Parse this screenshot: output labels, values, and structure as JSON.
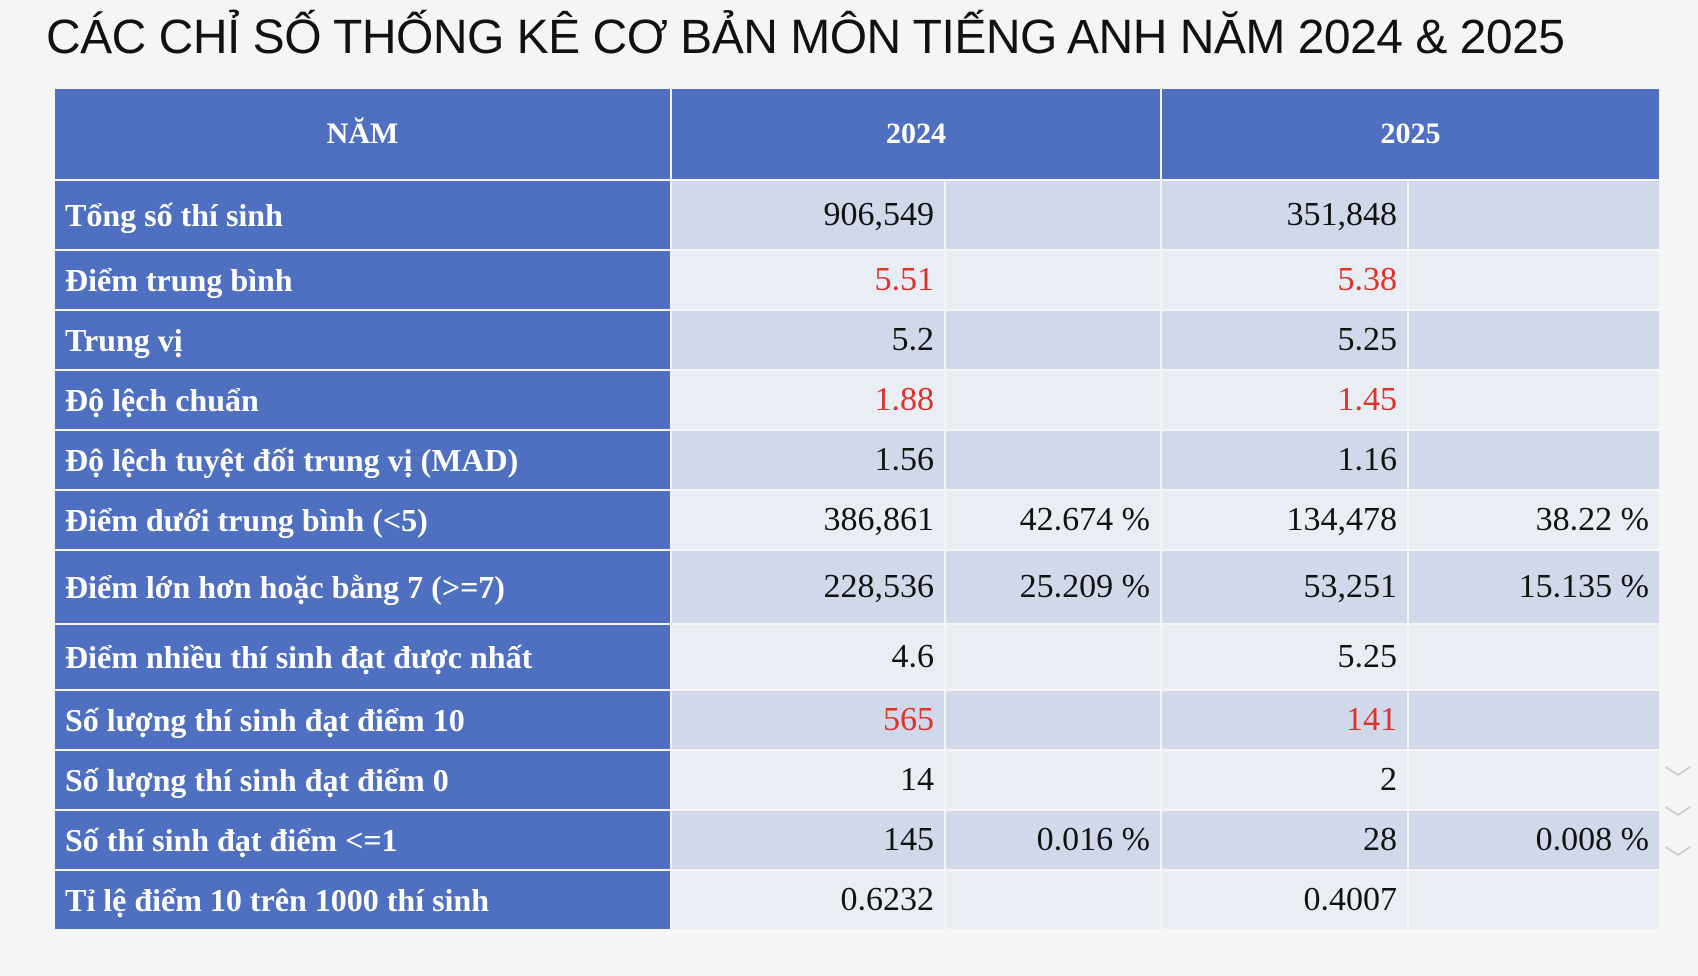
{
  "title": "CÁC CHỈ SỐ THỐNG KÊ CƠ BẢN MÔN TIẾNG ANH NĂM 2024 & 2025",
  "headers": {
    "metric": "NĂM",
    "year_a": "2024",
    "year_b": "2025"
  },
  "rows": [
    {
      "label": "Tổng số thí sinh",
      "v2024": "906,549",
      "p2024": "",
      "v2025": "351,848",
      "p2025": "",
      "red": false
    },
    {
      "label": "Điểm trung bình",
      "v2024": "5.51",
      "p2024": "",
      "v2025": "5.38",
      "p2025": "",
      "red": true
    },
    {
      "label": "Trung vị",
      "v2024": "5.2",
      "p2024": "",
      "v2025": "5.25",
      "p2025": "",
      "red": false
    },
    {
      "label": "Độ lệch chuẩn",
      "v2024": "1.88",
      "p2024": "",
      "v2025": "1.45",
      "p2025": "",
      "red": true
    },
    {
      "label": "Độ lệch tuyệt đối trung vị (MAD)",
      "v2024": "1.56",
      "p2024": "",
      "v2025": "1.16",
      "p2025": "",
      "red": false
    },
    {
      "label": "Điểm dưới trung bình (<5)",
      "v2024": "386,861",
      "p2024": "42.674 %",
      "v2025": "134,478",
      "p2025": "38.22 %",
      "red": false
    },
    {
      "label": "Điểm lớn hơn hoặc bằng 7 (>=7)",
      "v2024": "228,536",
      "p2024": "25.209 %",
      "v2025": "53,251",
      "p2025": "15.135 %",
      "red": false
    },
    {
      "label": "Điểm nhiều thí sinh đạt được nhất",
      "v2024": "4.6",
      "p2024": "",
      "v2025": "5.25",
      "p2025": "",
      "red": false
    },
    {
      "label": "Số lượng thí sinh đạt điểm 10",
      "v2024": "565",
      "p2024": "",
      "v2025": "141",
      "p2025": "",
      "red": true
    },
    {
      "label": "Số lượng thí sinh đạt điểm 0",
      "v2024": "14",
      "p2024": "",
      "v2025": "2",
      "p2025": "",
      "red": false
    },
    {
      "label": "Số thí sinh đạt điểm <=1",
      "v2024": "145",
      "p2024": "0.016 %",
      "v2025": "28",
      "p2025": "0.008 %",
      "red": false
    },
    {
      "label": "Tỉ lệ điểm 10 trên 1000 thí sinh",
      "v2024": "0.6232",
      "p2024": "",
      "v2025": "0.4007",
      "p2025": "",
      "red": false
    }
  ],
  "colors": {
    "header_blue": "#4f70c0",
    "row_light": "#e9edf4",
    "row_dark": "#d0d8ea",
    "highlight_red": "#e0312b"
  },
  "icons": [
    "chevron-down-icon"
  ]
}
